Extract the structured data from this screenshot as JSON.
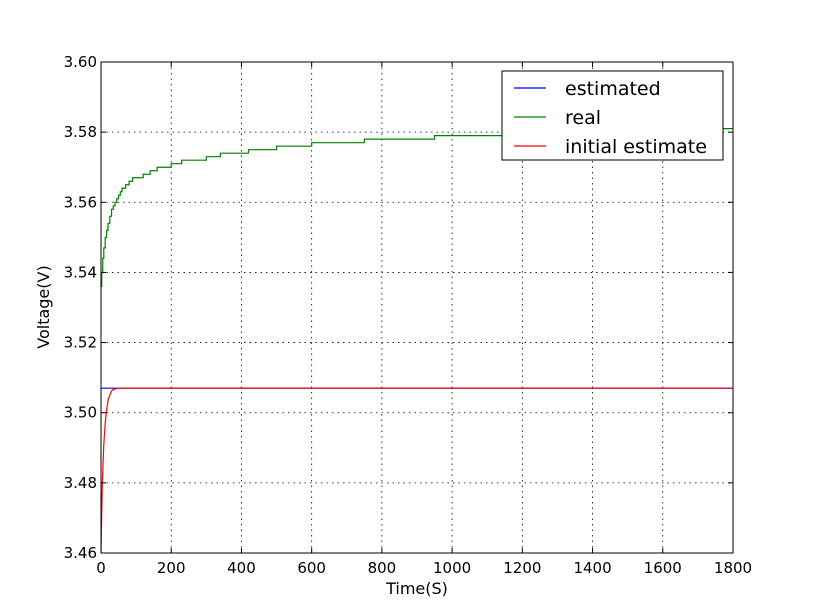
{
  "chart_data": {
    "type": "line",
    "title": "",
    "xlabel": "Time(S)",
    "ylabel": "Voltage(V)",
    "xlim": [
      0,
      1800
    ],
    "ylim": [
      3.46,
      3.6
    ],
    "xticks": [
      0,
      200,
      400,
      600,
      800,
      1000,
      1200,
      1400,
      1600,
      1800
    ],
    "yticks": [
      3.46,
      3.48,
      3.5,
      3.52,
      3.54,
      3.56,
      3.58,
      3.6
    ],
    "ytick_labels": [
      "3.46",
      "3.48",
      "3.50",
      "3.52",
      "3.54",
      "3.56",
      "3.58",
      "3.60"
    ],
    "grid": true,
    "legend_position": "top-right",
    "series": [
      {
        "name": "estimated",
        "color": "#0000ff",
        "x": [
          0,
          1800
        ],
        "y": [
          3.507,
          3.507
        ]
      },
      {
        "name": "real",
        "color": "#008000",
        "x": [
          0,
          2,
          5,
          8,
          12,
          16,
          20,
          25,
          30,
          35,
          40,
          45,
          50,
          55,
          60,
          70,
          80,
          90,
          100,
          120,
          140,
          160,
          180,
          200,
          230,
          260,
          300,
          340,
          380,
          420,
          460,
          500,
          550,
          600,
          650,
          700,
          750,
          800,
          850,
          900,
          950,
          1000,
          1050,
          1100,
          1150,
          1200,
          1300,
          1400,
          1500,
          1600,
          1700,
          1800
        ],
        "y": [
          3.536,
          3.54,
          3.544,
          3.547,
          3.55,
          3.552,
          3.554,
          3.556,
          3.558,
          3.559,
          3.56,
          3.561,
          3.562,
          3.563,
          3.564,
          3.565,
          3.566,
          3.567,
          3.567,
          3.568,
          3.569,
          3.57,
          3.57,
          3.571,
          3.572,
          3.572,
          3.573,
          3.574,
          3.574,
          3.575,
          3.575,
          3.576,
          3.576,
          3.577,
          3.577,
          3.577,
          3.578,
          3.578,
          3.578,
          3.578,
          3.579,
          3.579,
          3.579,
          3.579,
          3.579,
          3.58,
          3.58,
          3.58,
          3.58,
          3.58,
          3.581,
          3.581
        ]
      },
      {
        "name": "initial estimate",
        "color": "#ff0000",
        "x": [
          0,
          1,
          2,
          3,
          4,
          6,
          8,
          10,
          12,
          15,
          18,
          21,
          25,
          30,
          35,
          40,
          50,
          60,
          80,
          1800
        ],
        "y": [
          3.46,
          3.466,
          3.471,
          3.476,
          3.48,
          3.486,
          3.491,
          3.494,
          3.497,
          3.5,
          3.502,
          3.504,
          3.505,
          3.5062,
          3.5066,
          3.5068,
          3.507,
          3.507,
          3.507,
          3.507
        ]
      }
    ]
  }
}
